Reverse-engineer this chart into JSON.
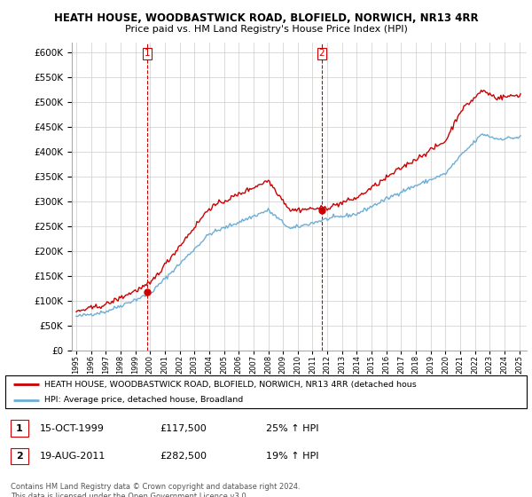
{
  "title_line1": "HEATH HOUSE, WOODBASTWICK ROAD, BLOFIELD, NORWICH, NR13 4RR",
  "title_line2": "Price paid vs. HM Land Registry's House Price Index (HPI)",
  "legend_line1": "HEATH HOUSE, WOODBASTWICK ROAD, BLOFIELD, NORWICH, NR13 4RR (detached hous",
  "legend_line2": "HPI: Average price, detached house, Broadland",
  "annotation1_label": "1",
  "annotation1_date": "15-OCT-1999",
  "annotation1_price": "£117,500",
  "annotation1_hpi": "25% ↑ HPI",
  "annotation2_label": "2",
  "annotation2_date": "19-AUG-2011",
  "annotation2_price": "£282,500",
  "annotation2_hpi": "19% ↑ HPI",
  "footer": "Contains HM Land Registry data © Crown copyright and database right 2024.\nThis data is licensed under the Open Government Licence v3.0.",
  "ylim": [
    0,
    620000
  ],
  "yticks": [
    0,
    50000,
    100000,
    150000,
    200000,
    250000,
    300000,
    350000,
    400000,
    450000,
    500000,
    550000,
    600000
  ],
  "xlim_start": 1994.7,
  "xlim_end": 2025.5,
  "hpi_color": "#6baed6",
  "price_color": "#cc0000",
  "vline_color": "#cc0000",
  "sale1_year": 1999.79,
  "sale1_price": 117500,
  "sale2_year": 2011.63,
  "sale2_price": 282500,
  "background_color": "#ffffff",
  "grid_color": "#cccccc"
}
